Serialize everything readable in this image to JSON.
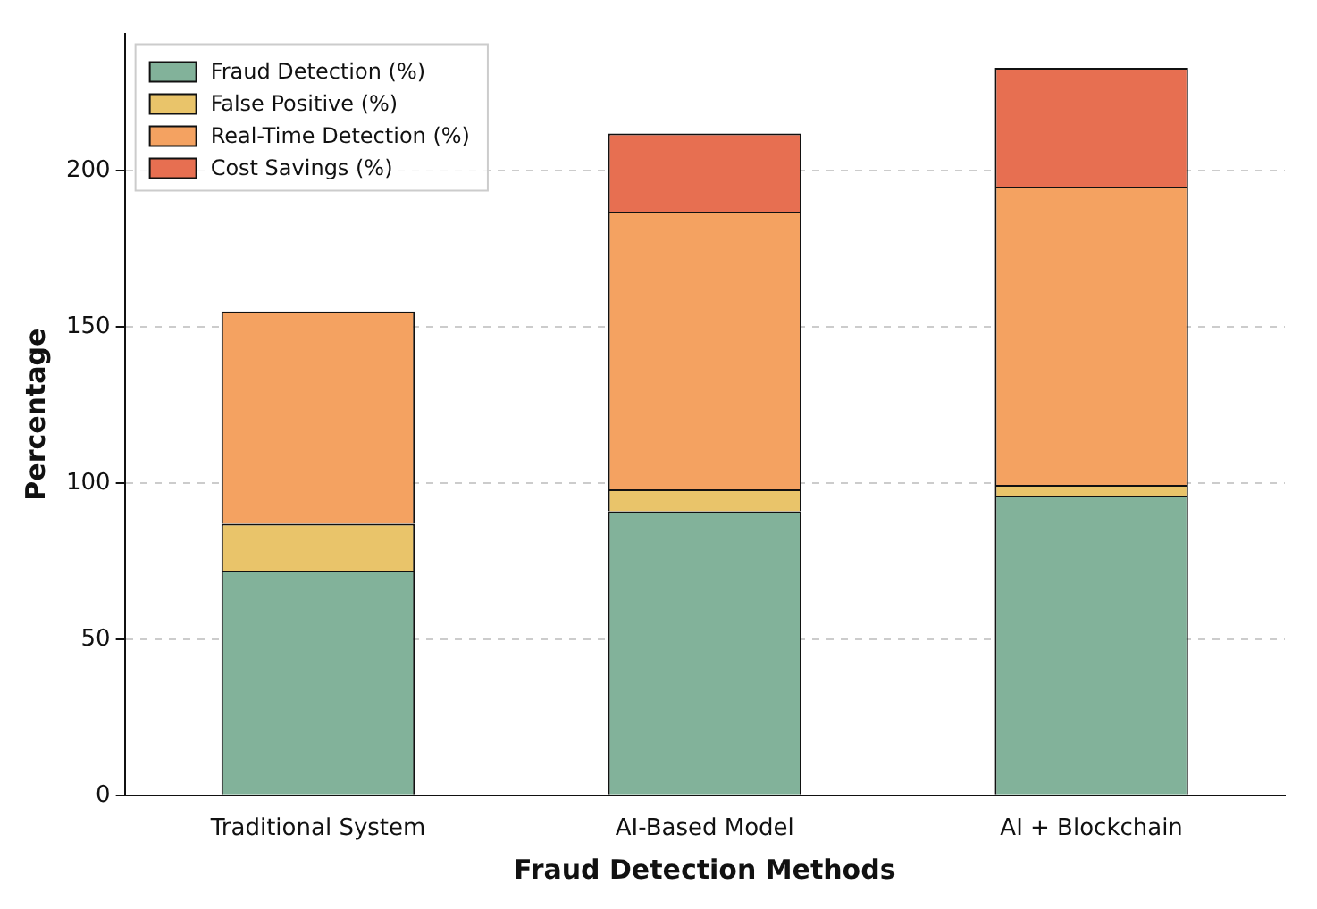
{
  "chart_data": {
    "type": "bar",
    "stacked": true,
    "xlabel": "Fraud Detection Methods",
    "ylabel": "Percentage",
    "categories": [
      "Traditional System",
      "AI-Based Model",
      "AI + Blockchain"
    ],
    "series": [
      {
        "name": "Fraud Detection (%)",
        "color": "#82b29a",
        "values": [
          72,
          91,
          96
        ]
      },
      {
        "name": "False Positive (%)",
        "color": "#e9c46a",
        "values": [
          15,
          7,
          3.5
        ]
      },
      {
        "name": "Real-Time Detection (%)",
        "color": "#f4a261",
        "values": [
          68,
          89,
          95.5
        ]
      },
      {
        "name": "Cost Savings (%)",
        "color": "#e76f51",
        "values": [
          0,
          25,
          38
        ]
      }
    ],
    "ylim": [
      0,
      244
    ],
    "yticks": [
      0,
      50,
      100,
      150,
      200
    ],
    "grid": "y",
    "legend": "top left"
  }
}
